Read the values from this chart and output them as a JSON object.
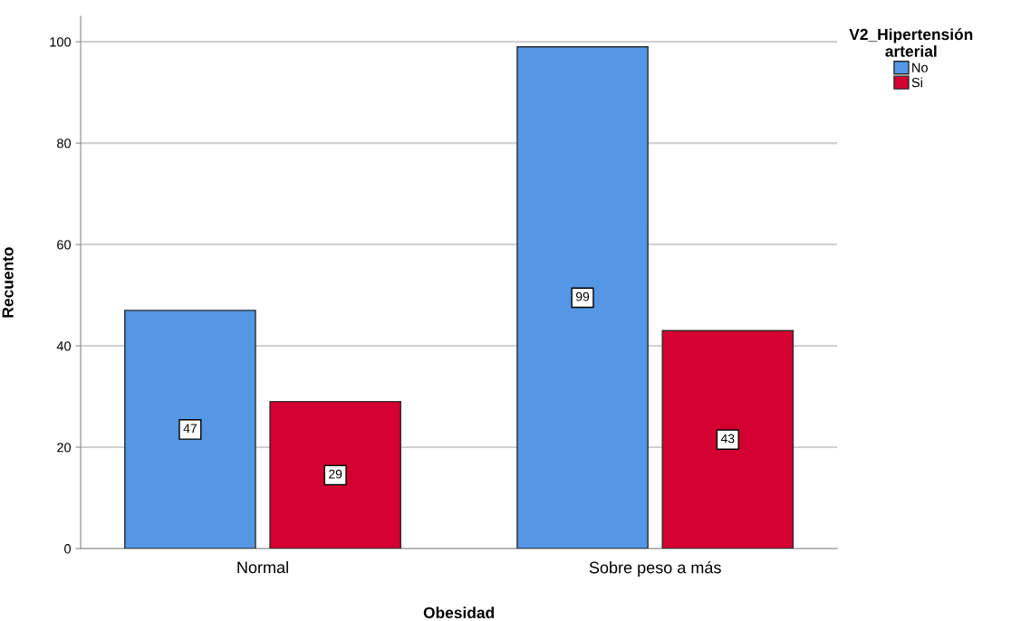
{
  "chart_data": {
    "type": "bar",
    "xlabel": "Obesidad",
    "ylabel": "Recuento",
    "legend_title": "V2_Hipertensión arterial",
    "categories": [
      "Normal",
      "Sobre peso a más"
    ],
    "series": [
      {
        "name": "No",
        "color": "#5596e5",
        "values": [
          47,
          99
        ]
      },
      {
        "name": "Si",
        "color": "#d40031",
        "values": [
          29,
          43
        ]
      }
    ],
    "ylim": [
      0,
      105
    ],
    "yticks": [
      0,
      20,
      40,
      60,
      80,
      100
    ],
    "grid": "y",
    "legend": "top right",
    "data_labels": true
  }
}
